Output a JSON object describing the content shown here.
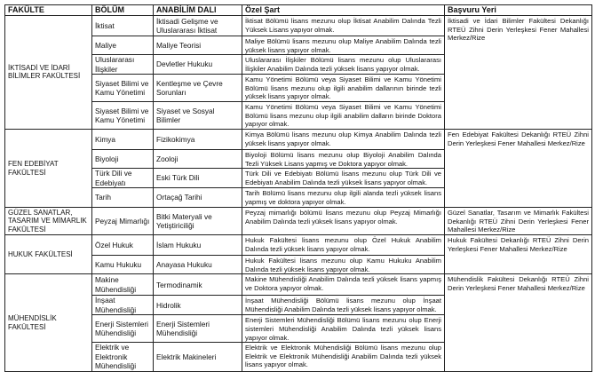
{
  "headers": {
    "fakulte": "FAKÜLTE",
    "bolum": "BÖLÜM",
    "anabilim": "ANABİLİM DALI",
    "sart": "Özel Şart",
    "basvuru": "Başvuru Yeri"
  },
  "faculties": [
    {
      "name": "İKTİSADİ VE İDARİ BİLİMLER FAKÜLTESİ",
      "basvuru": "İktisadi ve İdari Bilimler Fakültesi Dekanlığı RTEÜ Zihni Derin Yerleşkesi Fener Mahallesi Merkez/Rize",
      "rows": [
        {
          "bolum": "İktisat",
          "anabilim": "İktisadi Gelişme ve Uluslararası İktisat",
          "sart": "İktisat Bölümü lisans mezunu olup İktisat Anabilim Dalında Tezli Yüksek Lisans yapıyor olmak."
        },
        {
          "bolum": "Maliye",
          "anabilim": "Maliye Teorisi",
          "sart": "Maliye Bölümü lisans mezunu olup Maliye Anabilim Dalında tezli yüksek lisans yapıyor olmak."
        },
        {
          "bolum": "Uluslararası İlişkiler",
          "anabilim": "Devletler Hukuku",
          "sart": "Uluslararası İlişkiler Bölümü lisans mezunu olup Uluslararası İlişkiler Anabilim Dalında tezli yüksek lisans yapıyor olmak."
        },
        {
          "bolum": "Siyaset Bilimi ve Kamu Yönetimi",
          "anabilim": "Kentleşme ve Çevre Sorunları",
          "sart": "Kamu Yönetimi Bölümü veya Siyaset Bilimi ve Kamu Yönetimi Bölümü lisans mezunu olup ilgili anabilim dallarının birinde tezli yüksek lisans yapıyor olmak."
        },
        {
          "bolum": "Siyaset Bilimi ve Kamu Yönetimi",
          "anabilim": "Siyaset ve Sosyal Bilimler",
          "sart": "Kamu Yönetimi Bölümü veya Siyaset Bilimi ve Kamu Yönetimi Bölümü lisans mezunu olup ilgili anabilim dalların birinde Doktora yapıyor olmak."
        }
      ]
    },
    {
      "name": "FEN EDEBİYAT FAKÜLTESİ",
      "basvuru": "Fen Edebiyat Fakültesi Dekanlığı RTEÜ Zihni Derin Yerleşkesi Fener Mahallesi Merkez/Rize",
      "rows": [
        {
          "bolum": "Kimya",
          "anabilim": "Fizikokimya",
          "sart": "Kimya Bölümü lisans mezunu olup Kimya Anabilim Dalında tezli yüksek lisans yapıyor olmak."
        },
        {
          "bolum": "Biyoloji",
          "anabilim": "Zooloji",
          "sart": "Biyoloji Bölümü lisans mezunu olup Biyoloji Anabilim Dalında Tezli Yüksek Lisans yapmış ve Doktora yapıyor olmak."
        },
        {
          "bolum": "Türk Dili ve Edebiyatı",
          "anabilim": "Eski Türk Dili",
          "sart": "Türk Dili ve Edebiyatı Bölümü lisans mezunu olup Türk Dili ve Edebiyatı Anabilim Dalında tezli yüksek lisans yapıyor olmak."
        },
        {
          "bolum": "Tarih",
          "anabilim": "Ortaçağ Tarihi",
          "sart": "Tarih Bölümü lisans mezunu olup ilgili alanda tezli yüksek lisans yapmış ve doktora yapıyor olmak."
        }
      ]
    },
    {
      "name": "GÜZEL SANATLAR, TASARIM VE MİMARLIK FAKÜLTESİ",
      "basvuru": "Güzel Sanatlar, Tasarım ve Mimarlık Fakültesi Dekanlığı RTEÜ Zihni Derin Yerleşkesi Fener Mahallesi Merkez/Rize",
      "rows": [
        {
          "bolum": "Peyzaj Mimarlığı",
          "anabilim": "Bitki Materyali ve Yetiştiriciliği",
          "sart": "Peyzaj mimarlığı bölümü lisans mezunu olup Peyzaj Mimarlığı Anabilim Dalında tezli yüksek lisans yapıyor olmak."
        }
      ]
    },
    {
      "name": "HUKUK FAKÜLTESİ",
      "basvuru": "Hukuk Fakültesi Dekanlığı RTEÜ Zihni Derin Yerleşkesi Fener Mahallesi Merkez/Rize",
      "rows": [
        {
          "bolum": "Özel Hukuk",
          "anabilim": "İslam Hukuku",
          "sart": "Hukuk Fakültesi lisans mezunu olup Özel Hukuk Anabilim Dalında tezli yüksek lisans yapıyor olmak."
        },
        {
          "bolum": "Kamu Hukuku",
          "anabilim": "Anayasa Hukuku",
          "sart": "Hukuk Fakültesi lisans mezunu olup Kamu Hukuku Anabilim Dalında tezli yüksek lisans yapıyor olmak."
        }
      ]
    },
    {
      "name": "MÜHENDİSLİK FAKÜLTESİ",
      "basvuru": "Mühendislik Fakültesi Dekanlığı RTEÜ Zihni Derin Yerleşkesi Fener Mahallesi Merkez/Rize",
      "rows": [
        {
          "bolum": "Makine Mühendisliği",
          "anabilim": "Termodinamik",
          "sart": "Makine Mühendisliği Anabilim Dalında tezli yüksek lisans yapmış ve Doktora yapıyor olmak."
        },
        {
          "bolum": "İnşaat Mühendisliği",
          "anabilim": "Hidrolik",
          "sart": "İnşaat Mühendisliği Bölümü lisans mezunu olup İnşaat Mühendisliği Anabilim Dalında tezli yüksek lisans yapıyor olmak."
        },
        {
          "bolum": "Enerji Sistemleri Mühendisliği",
          "anabilim": "Enerji Sistemleri Mühendisliği",
          "sart": "Enerji Sistemleri Mühendisliği Bölümü lisans mezunu olup Enerji sistemleri Mühendisliği Anabilim Dalında tezli yüksek lisans yapıyor olmak."
        },
        {
          "bolum": "Elektrik ve Elektronik Mühendisliği",
          "anabilim": "Elektrik Makineleri",
          "sart": "Elektrik ve Elektronik Mühendisliği Bölümü lisans mezunu olup Elektrik ve Elektronik Mühendisliği Anabilim Dalında tezli yüksek lisans yapıyor olmak."
        }
      ]
    }
  ]
}
